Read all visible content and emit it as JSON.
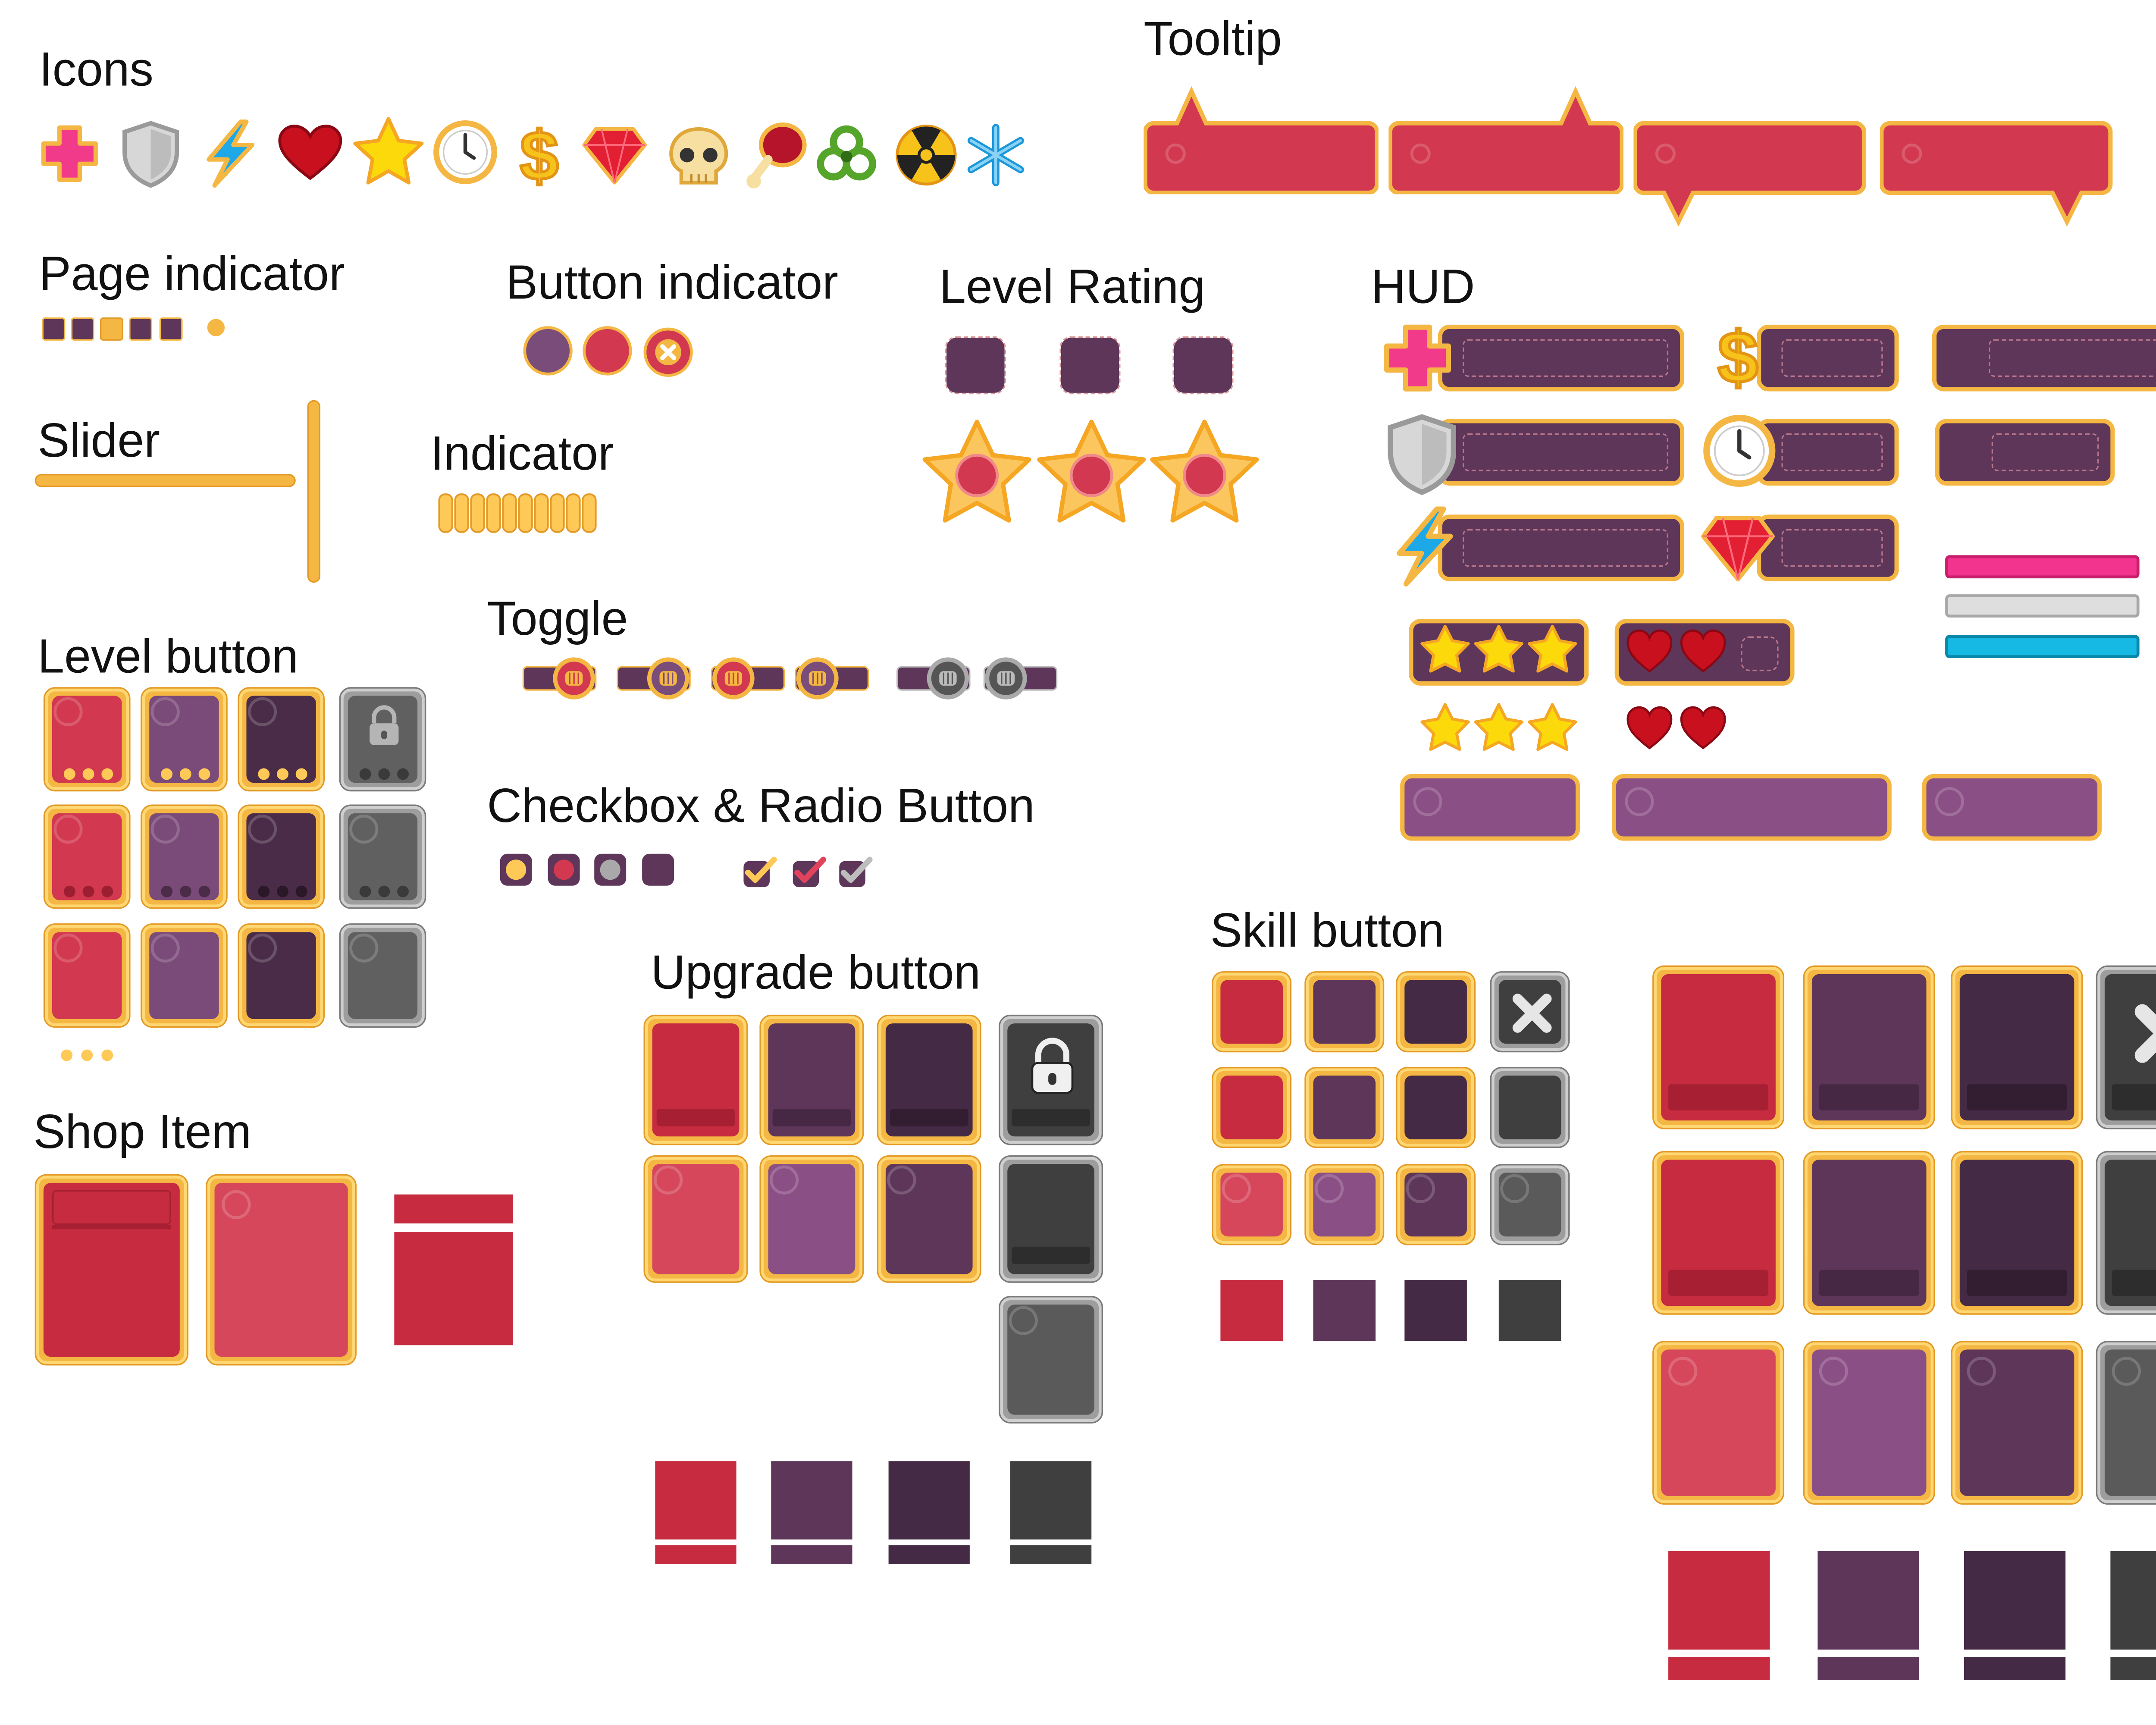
{
  "sections": {
    "icons": "Icons",
    "tooltip": "Tooltip",
    "page_indicator": "Page indicator",
    "button_indicator": "Button indicator",
    "level_rating": "Level Rating",
    "hud": "HUD",
    "slider": "Slider",
    "indicator": "Indicator",
    "level_button": "Level button",
    "toggle": "Toggle",
    "checkbox_radio": "Checkbox & Radio Button",
    "skill_button": "Skill button",
    "upgrade_button": "Upgrade button",
    "shop_item": "Shop Item"
  },
  "icons": [
    "health-plus-icon",
    "shield-icon",
    "lightning-icon",
    "heart-icon",
    "star-icon",
    "clock-icon",
    "dollar-icon",
    "gem-icon",
    "skull-icon",
    "meat-icon",
    "biohazard-icon",
    "radiation-icon",
    "snowflake-icon"
  ],
  "colors": {
    "gold": "#f5b743",
    "gold_light": "#ffd874",
    "red": "#c62b40",
    "red_light": "#d6475c",
    "purple": "#5d3659",
    "purple_light": "#8a4f84",
    "dark_purple": "#442a44",
    "gray": "#5a5a5a",
    "dark_gray": "#3f3f3f",
    "pink_bar": "#f3348f",
    "silver_bar": "#dedede",
    "cyan_bar": "#15b9e3"
  }
}
